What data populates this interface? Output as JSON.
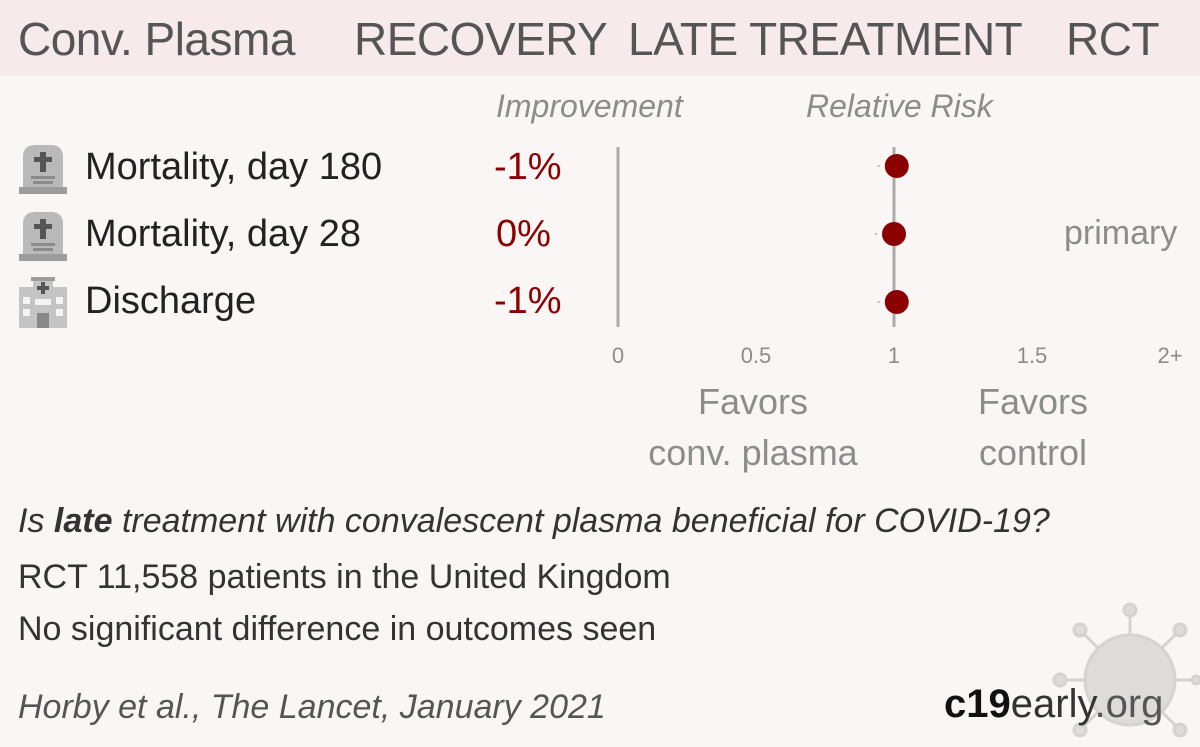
{
  "header": {
    "treatment": "Conv. Plasma",
    "study": "RECOVERY",
    "stage": "LATE TREATMENT",
    "design": "RCT"
  },
  "columns": {
    "improvement": "Improvement",
    "relative_risk": "Relative Risk"
  },
  "outcomes": [
    {
      "label": "Mortality, day 180",
      "improvement": "-1%",
      "icon": "tombstone-icon",
      "primary": false
    },
    {
      "label": "Mortality, day 28",
      "improvement": "0%",
      "icon": "tombstone-icon",
      "primary": true
    },
    {
      "label": "Discharge",
      "improvement": "-1%",
      "icon": "hospital-icon",
      "primary": false
    }
  ],
  "primary_label": "primary",
  "favors": {
    "left_line1": "Favors",
    "left_line2": "conv. plasma",
    "right_line1": "Favors",
    "right_line2": "control"
  },
  "chart_data": {
    "type": "scatter",
    "title": "Relative Risk",
    "xlabel": "",
    "ylabel": "",
    "xlim": [
      0,
      2
    ],
    "x_ticks": [
      "0",
      "0.5",
      "1",
      "1.5",
      "2+"
    ],
    "categories": [
      "Mortality, day 180",
      "Mortality, day 28",
      "Discharge"
    ],
    "values": [
      1.01,
      1.0,
      1.01
    ],
    "reference_line": 1,
    "grid": false
  },
  "summary": {
    "question_prefix": "Is",
    "question_bold": "late",
    "question_suffix": "treatment with convalescent plasma beneficial for COVID-19?",
    "design_line": "RCT 11,558 patients in the United Kingdom",
    "result_line": "No significant difference in outcomes seen"
  },
  "citation": "Horby et al., The Lancet, January 2021",
  "brand": {
    "part1": "c19",
    "part2": "early",
    "part3": ".org"
  },
  "colors": {
    "accent": "#8b0000",
    "header_bg": "#f6eaea",
    "page_bg": "#fbf6f6"
  }
}
